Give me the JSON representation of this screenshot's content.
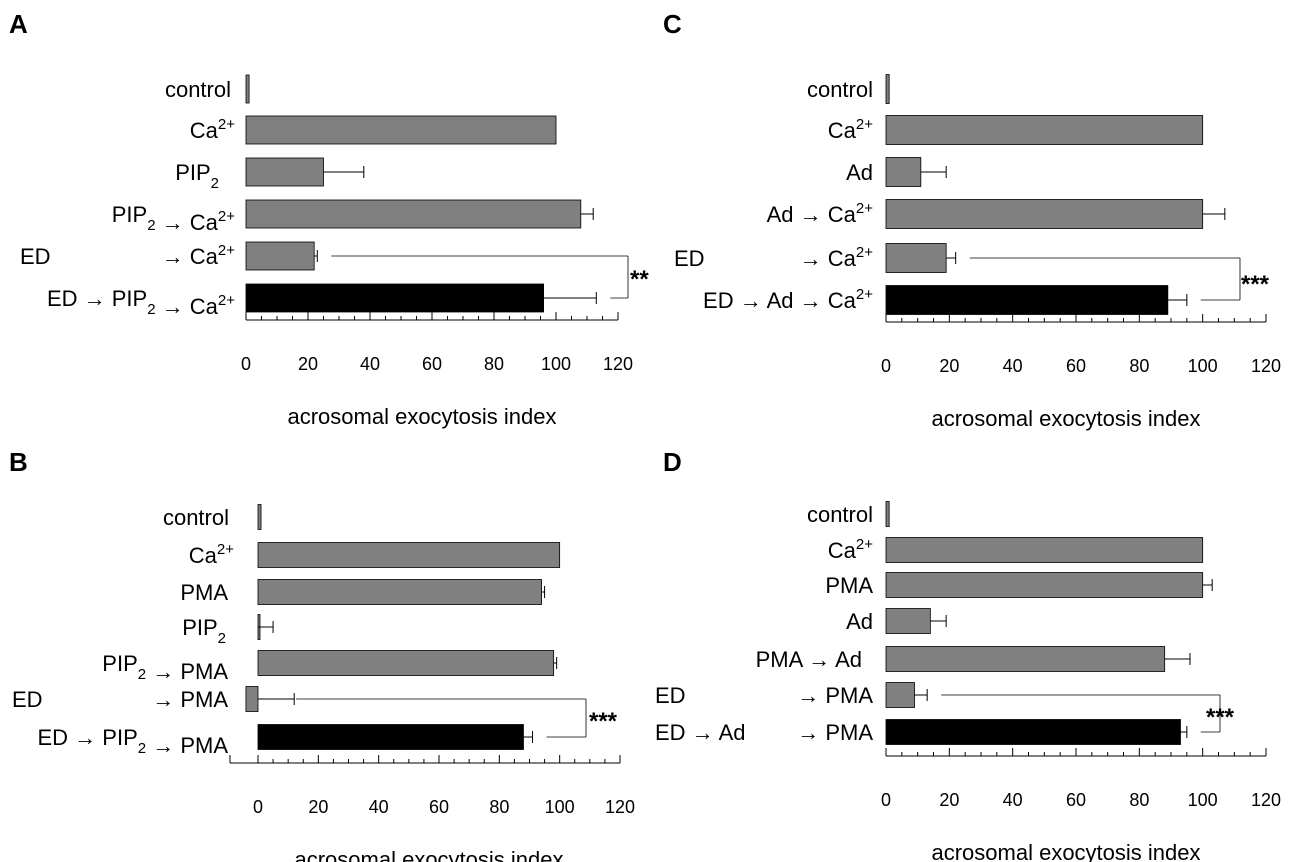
{
  "colors": {
    "gray_bar": "#808080",
    "black_bar": "#000000",
    "axis": "#000000"
  },
  "chart_data": [
    {
      "panel": "A",
      "type": "bar",
      "orientation": "horizontal",
      "xlabel": "acrosomal exocytosis index",
      "xlim": [
        0,
        120
      ],
      "xticks": [
        "0",
        "20",
        "40",
        "60",
        "80",
        "100",
        "120"
      ],
      "categories": [
        "control",
        "Ca2+",
        "PIP2",
        "PIP2 → Ca2+",
        "ED → Ca2+",
        "ED → PIP2 → Ca2+"
      ],
      "values": [
        1,
        100,
        25,
        108,
        22,
        96
      ],
      "errors": [
        0,
        0,
        13,
        4,
        1,
        17
      ],
      "significance": {
        "label": "**",
        "between": [
          "ED → Ca2+",
          "ED → PIP2 → Ca2+"
        ]
      },
      "grid": false
    },
    {
      "panel": "B",
      "type": "bar",
      "orientation": "horizontal",
      "xlabel": "acrosomal exocytosis index",
      "xlim": [
        0,
        120
      ],
      "xticks": [
        "0",
        "20",
        "40",
        "60",
        "80",
        "100",
        "120"
      ],
      "categories": [
        "control",
        "Ca2+",
        "PMA",
        "PIP2",
        "PIP2 → PMA",
        "ED → PMA",
        "ED → PIP2 → PMA"
      ],
      "values": [
        1,
        100,
        94,
        0,
        98,
        -4,
        88
      ],
      "errors": [
        0,
        0,
        1,
        5,
        1,
        12,
        3
      ],
      "significance": {
        "label": "***",
        "between": [
          "ED → PMA",
          "ED → PIP2 → PMA"
        ]
      },
      "grid": false
    },
    {
      "panel": "C",
      "type": "bar",
      "orientation": "horizontal",
      "xlabel": "acrosomal exocytosis index",
      "xlim": [
        0,
        120
      ],
      "xticks": [
        "0",
        "20",
        "40",
        "60",
        "80",
        "100",
        "120"
      ],
      "categories": [
        "control",
        "Ca2+",
        "Ad",
        "Ad → Ca2+",
        "ED → Ca2+",
        "ED → Ad → Ca2+"
      ],
      "values": [
        1,
        100,
        11,
        100,
        19,
        89
      ],
      "errors": [
        0,
        0,
        8,
        7,
        3,
        6
      ],
      "significance": {
        "label": "***",
        "between": [
          "ED → Ca2+",
          "ED → Ad → Ca2+"
        ]
      },
      "grid": false
    },
    {
      "panel": "D",
      "type": "bar",
      "orientation": "horizontal",
      "xlabel": "acrosomal exocytosis index",
      "xlim": [
        0,
        120
      ],
      "xticks": [
        "0",
        "20",
        "40",
        "60",
        "80",
        "100",
        "120"
      ],
      "categories": [
        "control",
        "Ca2+",
        "PMA",
        "Ad",
        "PMA → Ad",
        "ED → PMA",
        "ED → Ad → PMA"
      ],
      "values": [
        1,
        100,
        100,
        14,
        88,
        9,
        93
      ],
      "errors": [
        0,
        0,
        3,
        5,
        8,
        4,
        2
      ],
      "significance": {
        "label": "***",
        "between": [
          "ED → PMA",
          "ED → Ad → PMA"
        ]
      },
      "grid": false
    }
  ]
}
